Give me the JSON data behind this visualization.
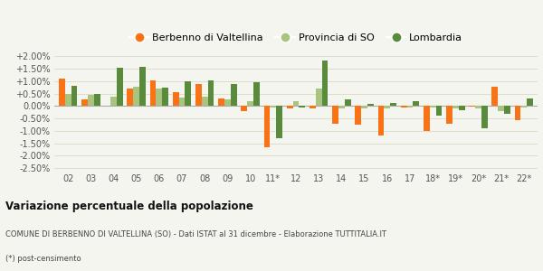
{
  "categories": [
    "02",
    "03",
    "04",
    "05",
    "06",
    "07",
    "08",
    "09",
    "10",
    "11*",
    "12",
    "13",
    "14",
    "15",
    "16",
    "17",
    "18*",
    "19*",
    "20*",
    "21*",
    "22*"
  ],
  "berbenno": [
    1.1,
    0.28,
    0.02,
    0.72,
    1.02,
    0.55,
    0.88,
    0.3,
    -0.2,
    -1.65,
    -0.08,
    -0.08,
    -0.7,
    -0.75,
    -1.18,
    -0.05,
    -1.02,
    -0.72,
    -0.03,
    0.78,
    -0.55
  ],
  "provincia": [
    0.48,
    0.45,
    0.38,
    0.78,
    0.72,
    0.35,
    0.38,
    0.25,
    0.2,
    -0.05,
    0.18,
    0.7,
    -0.1,
    -0.1,
    -0.1,
    -0.05,
    -0.05,
    -0.1,
    -0.1,
    -0.2,
    -0.05
  ],
  "lombardia": [
    0.82,
    0.5,
    1.52,
    1.58,
    0.75,
    1.0,
    1.03,
    0.88,
    0.95,
    -1.28,
    -0.05,
    1.82,
    0.27,
    0.1,
    0.14,
    0.18,
    -0.38,
    -0.18,
    -0.9,
    -0.3,
    0.32
  ],
  "berbenno_color": "#f97316",
  "provincia_color": "#a8c480",
  "lombardia_color": "#5a8a3c",
  "bg_color": "#f5f5f0",
  "grid_color": "#ddddcc",
  "title_bold": "Variazione percentuale della popolazione",
  "subtitle": "COMUNE DI BERBENNO DI VALTELLINA (SO) - Dati ISTAT al 31 dicembre - Elaborazione TUTTITALIA.IT",
  "footnote": "(*) post-censimento",
  "legend_labels": [
    "Berbenno di Valtellina",
    "Provincia di SO",
    "Lombardia"
  ],
  "ylim": [
    -2.6,
    2.3
  ],
  "ytick_vals": [
    -2.5,
    -2.0,
    -1.5,
    -1.0,
    -0.5,
    0.0,
    0.5,
    1.0,
    1.5,
    2.0
  ],
  "bar_width": 0.27
}
